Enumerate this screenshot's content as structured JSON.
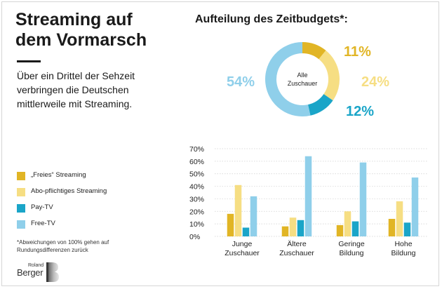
{
  "header": {
    "title": "Streaming auf dem Vormarsch",
    "subtitle": "Über ein Drittel der Sehzeit verbringen die Deutschen mittlerweile mit Streaming."
  },
  "donut": {
    "title": "Aufteilung des Zeitbudgets*:",
    "center_line1": "Alle",
    "center_line2": "Zuschauer"
  },
  "legend": {
    "items": [
      {
        "label": "„Freies“ Streaming",
        "color": "#E1B525"
      },
      {
        "label": "Abo-pflichtiges Streaming",
        "color": "#F6DE83"
      },
      {
        "label": "Pay-TV",
        "color": "#1AA5C8"
      },
      {
        "label": "Free-TV",
        "color": "#8FCFEA"
      }
    ]
  },
  "footnote": "*Abweichungen von 100% gehen auf Rundungsdifferenzen zurück",
  "logo": {
    "top": "Roland",
    "main": "Berger"
  },
  "chart_data": [
    {
      "type": "pie",
      "title": "Aufteilung des Zeitbudgets*:",
      "categories": [
        "„Freies“ Streaming",
        "Abo-pflichtiges Streaming",
        "Pay-TV",
        "Free-TV"
      ],
      "values": [
        11,
        24,
        12,
        54
      ],
      "value_labels": [
        "11%",
        "24%",
        "12%",
        "54%"
      ],
      "colors": [
        "#E1B525",
        "#F6DE83",
        "#1AA5C8",
        "#8FCFEA"
      ]
    },
    {
      "type": "bar",
      "categories": [
        "Junge Zuschauer",
        "Ältere Zuschauer",
        "Geringe Bildung",
        "Hohe Bildung"
      ],
      "category_lines": [
        [
          "Junge",
          "Zuschauer"
        ],
        [
          "Ältere",
          "Zuschauer"
        ],
        [
          "Geringe",
          "Bildung"
        ],
        [
          "Hohe",
          "Bildung"
        ]
      ],
      "series": [
        {
          "name": "„Freies“ Streaming",
          "color": "#E1B525",
          "values": [
            18,
            8,
            9,
            14
          ]
        },
        {
          "name": "Abo-pflichtiges Streaming",
          "color": "#F6DE83",
          "values": [
            41,
            15,
            20,
            28
          ]
        },
        {
          "name": "Pay-TV",
          "color": "#1AA5C8",
          "values": [
            7,
            13,
            12,
            11
          ]
        },
        {
          "name": "Free-TV",
          "color": "#8FCFEA",
          "values": [
            32,
            64,
            59,
            47
          ]
        }
      ],
      "ylim": [
        0,
        70
      ],
      "yticks": [
        "0%",
        "10%",
        "20%",
        "30%",
        "40%",
        "50%",
        "60%",
        "70%"
      ],
      "grid": true,
      "legend": "left"
    }
  ]
}
